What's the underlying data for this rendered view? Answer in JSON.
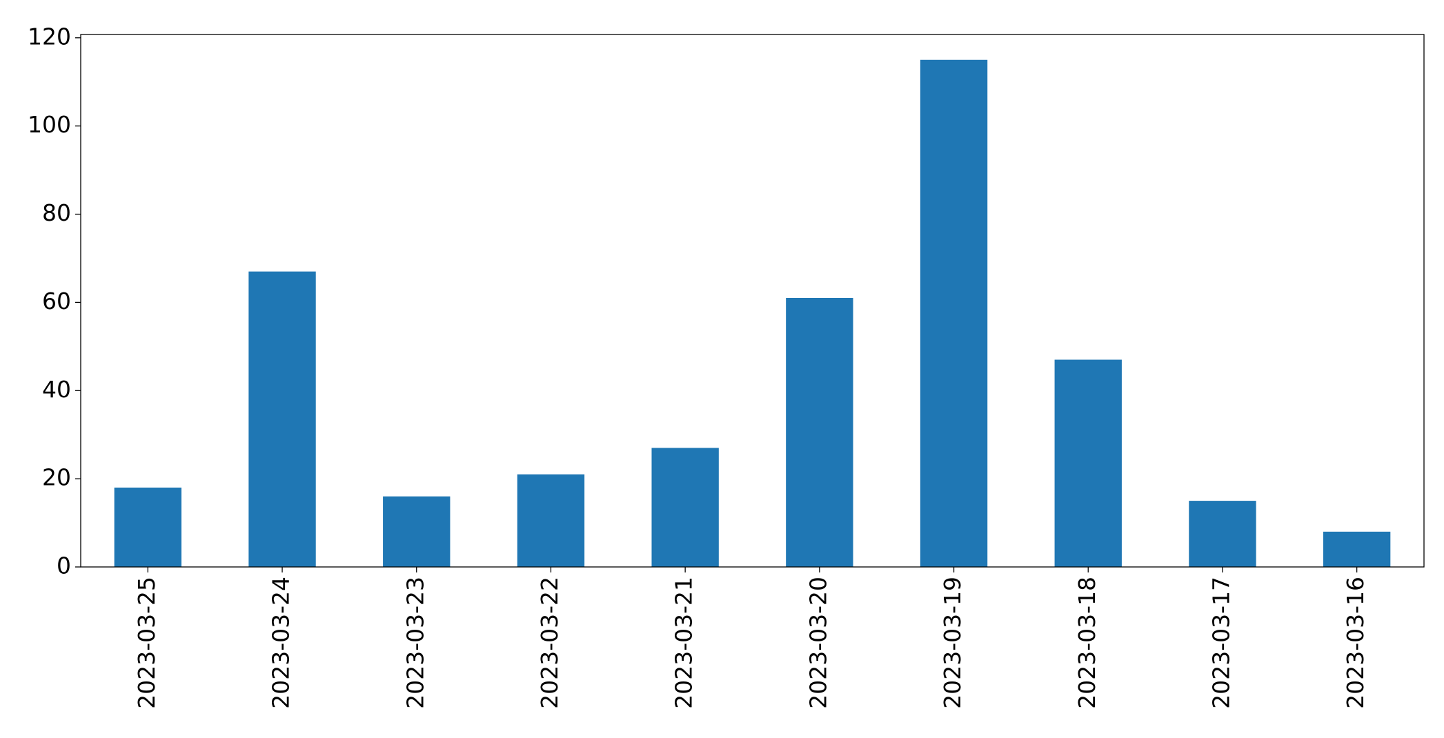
{
  "chart_data": {
    "type": "bar",
    "categories": [
      "2023-03-25",
      "2023-03-24",
      "2023-03-23",
      "2023-03-22",
      "2023-03-21",
      "2023-03-20",
      "2023-03-19",
      "2023-03-18",
      "2023-03-17",
      "2023-03-16"
    ],
    "values": [
      18,
      67,
      16,
      21,
      27,
      61,
      115,
      47,
      15,
      8
    ],
    "color": "#1f77b4",
    "ylim": [
      0,
      120.75
    ],
    "yticks": [
      0,
      20,
      40,
      60,
      80,
      100,
      120
    ],
    "grid": false
  }
}
